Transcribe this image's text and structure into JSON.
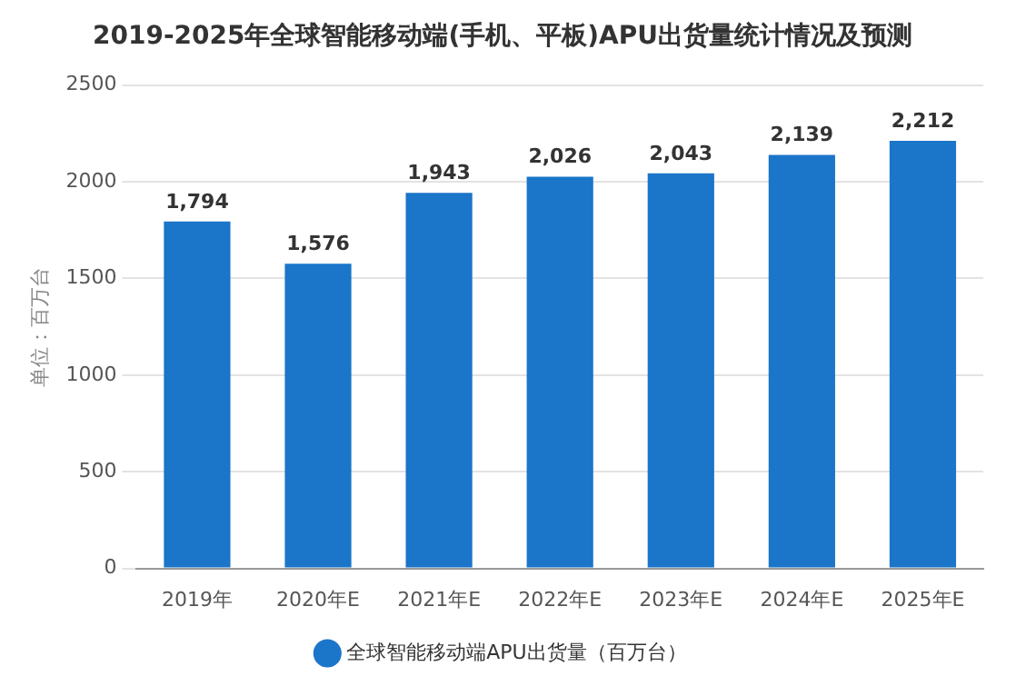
{
  "chart_data": {
    "type": "bar",
    "title": "2019-2025年全球智能移动端(手机、平板)APU出货量统计情况及预测",
    "ylabel": "单位：百万台",
    "categories": [
      "2019年",
      "2020年E",
      "2021年E",
      "2022年E",
      "2023年E",
      "2024年E",
      "2025年E"
    ],
    "series": [
      {
        "name": "全球智能移动端APU出货量（百万台）",
        "color": "#1b75c9",
        "values": [
          1794,
          1576,
          1943,
          2026,
          2043,
          2139,
          2212
        ]
      }
    ],
    "value_labels": [
      "1,794",
      "1,576",
      "1,943",
      "2,026",
      "2,043",
      "2,139",
      "2,212"
    ],
    "ylim": [
      0,
      2500
    ],
    "yticks": [
      0,
      500,
      1000,
      1500,
      2000,
      2500
    ],
    "grid": "y",
    "legend": "bottom"
  }
}
